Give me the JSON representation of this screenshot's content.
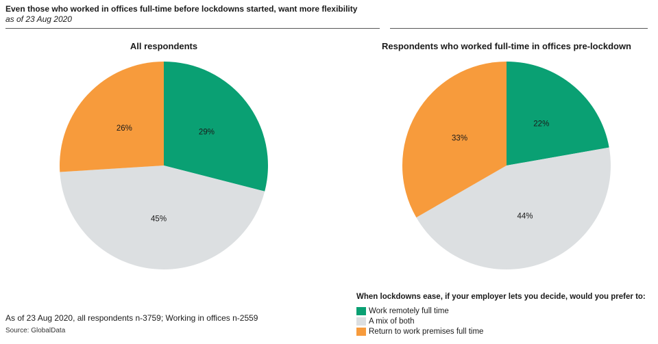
{
  "header": {
    "title": "Even those who worked in offices full-time before lockdowns started, want more flexibility",
    "subtitle": "as of 23 Aug 2020"
  },
  "chart_data": [
    {
      "type": "pie",
      "title": "All respondents",
      "series": [
        {
          "name": "Work remotely full time",
          "value": 29,
          "label": "29%",
          "color": "#0aa073"
        },
        {
          "name": "A mix of both",
          "value": 45,
          "label": "45%",
          "color": "#dcdfe1"
        },
        {
          "name": "Return to work premises full time",
          "value": 26,
          "label": "26%",
          "color": "#f79b3c"
        }
      ]
    },
    {
      "type": "pie",
      "title": "Respondents who worked full-time in offices pre-lockdown",
      "series": [
        {
          "name": "Work remotely full time",
          "value": 22,
          "label": "22%",
          "color": "#0aa073"
        },
        {
          "name": "A mix of both",
          "value": 44,
          "label": "44%",
          "color": "#dcdfe1"
        },
        {
          "name": "Return to work premises full time",
          "value": 33,
          "label": "33%",
          "color": "#f79b3c"
        }
      ]
    }
  ],
  "legend": {
    "question": "When lockdowns ease, if your employer lets you decide, would you prefer to:",
    "items": [
      {
        "label": "Work remotely full time",
        "color": "#0aa073"
      },
      {
        "label": "A mix of both",
        "color": "#dcdfe1"
      },
      {
        "label": "Return to work premises full time",
        "color": "#f79b3c"
      }
    ]
  },
  "footnote": "As of 23 Aug 2020, all respondents n-3759; Working in offices n-2559",
  "source": "Source: GlobalData"
}
